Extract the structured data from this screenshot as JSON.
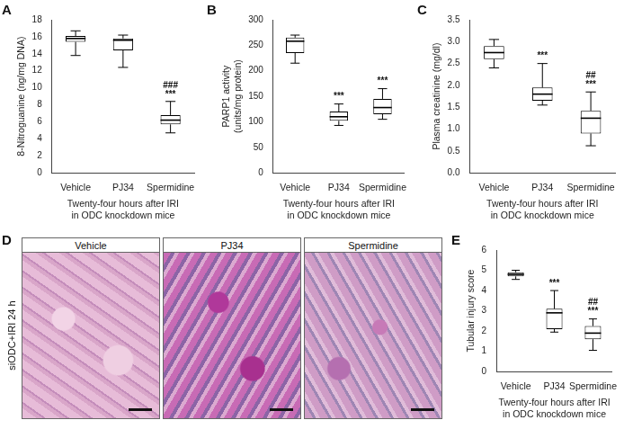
{
  "chart_data": [
    {
      "type": "box",
      "panel": "A",
      "y_label": "8-Nitroguanine (ng/mg DNA)",
      "x_label": [
        "Twenty-four hours after IRI",
        "in ODC knockdown mice"
      ],
      "categories": [
        "Vehicle",
        "PJ34",
        "Spermidine"
      ],
      "min": [
        13.8,
        12.4,
        4.7
      ],
      "q1": [
        15.4,
        14.4,
        5.7
      ],
      "median": [
        15.8,
        15.6,
        6.2
      ],
      "q3": [
        16.1,
        15.8,
        6.8
      ],
      "max": [
        16.7,
        16.2,
        8.4
      ],
      "annotations": [
        [],
        [],
        [
          "###",
          "***"
        ]
      ],
      "ylim": [
        0,
        18
      ],
      "yticks": [
        0,
        2,
        4,
        6,
        8,
        10,
        12,
        14,
        16,
        18
      ],
      "grid": false,
      "color": "#000000"
    },
    {
      "type": "box",
      "panel": "B",
      "y_label": [
        "PARP1 activity",
        "(units/mg protein)"
      ],
      "x_label": [
        "Twenty-four hours after IRI",
        "in ODC knockdown mice"
      ],
      "categories": [
        "Vehicle",
        "PJ34",
        "Spermidine"
      ],
      "min": [
        215,
        93,
        105
      ],
      "q1": [
        235,
        102,
        115
      ],
      "median": [
        258,
        110,
        128
      ],
      "q3": [
        265,
        120,
        145
      ],
      "max": [
        270,
        135,
        165
      ],
      "annotations": [
        [],
        [
          "***"
        ],
        [
          "***"
        ]
      ],
      "ylim": [
        0,
        300
      ],
      "yticks": [
        0,
        50,
        100,
        150,
        200,
        250,
        300
      ],
      "grid": false,
      "color": "#000000"
    },
    {
      "type": "box",
      "panel": "C",
      "y_label": "Plasma creatinine (mg/dl)",
      "x_label": [
        "Twenty-four hours after IRI",
        "in ODC knockdown mice"
      ],
      "categories": [
        "Vehicle",
        "PJ34",
        "Spermidine"
      ],
      "min": [
        2.4,
        1.55,
        0.62
      ],
      "q1": [
        2.6,
        1.65,
        0.9
      ],
      "median": [
        2.75,
        1.8,
        1.25
      ],
      "q3": [
        2.9,
        1.95,
        1.42
      ],
      "max": [
        3.05,
        2.5,
        1.85
      ],
      "annotations": [
        [],
        [
          "***"
        ],
        [
          "##",
          "***"
        ]
      ],
      "ylim": [
        0,
        3.5
      ],
      "yticks": [
        {
          "value": 0,
          "label": "0.0"
        },
        0.5,
        {
          "value": 1,
          "label": "1.0"
        },
        1.5,
        {
          "value": 2,
          "label": "2.0"
        },
        2.5,
        {
          "value": 3,
          "label": "3.0"
        },
        3.5
      ],
      "grid": false,
      "color": "#000000"
    },
    {
      "type": "box",
      "panel": "E",
      "y_label": "Tubular injury score",
      "x_label": [
        "Twenty-four hours after IRI",
        "in ODC knockdown mice"
      ],
      "categories": [
        "Vehicle",
        "PJ34",
        "Spermidine"
      ],
      "min": [
        4.55,
        1.95,
        1.05
      ],
      "q1": [
        4.7,
        2.1,
        1.6
      ],
      "median": [
        4.8,
        2.9,
        1.9
      ],
      "q3": [
        4.9,
        3.1,
        2.25
      ],
      "max": [
        5.0,
        4.0,
        2.6
      ],
      "annotations": [
        [],
        [
          "***"
        ],
        [
          "##",
          "***"
        ]
      ],
      "ylim": [
        0,
        6
      ],
      "yticks": [
        0,
        1,
        2,
        3,
        4,
        5,
        6
      ],
      "grid": false,
      "color": "#000000"
    }
  ],
  "image_panel": {
    "panel": "D",
    "row_label": "siODC+IRI 24 h",
    "images": [
      "Vehicle",
      "PJ34",
      "Spermidine"
    ]
  }
}
